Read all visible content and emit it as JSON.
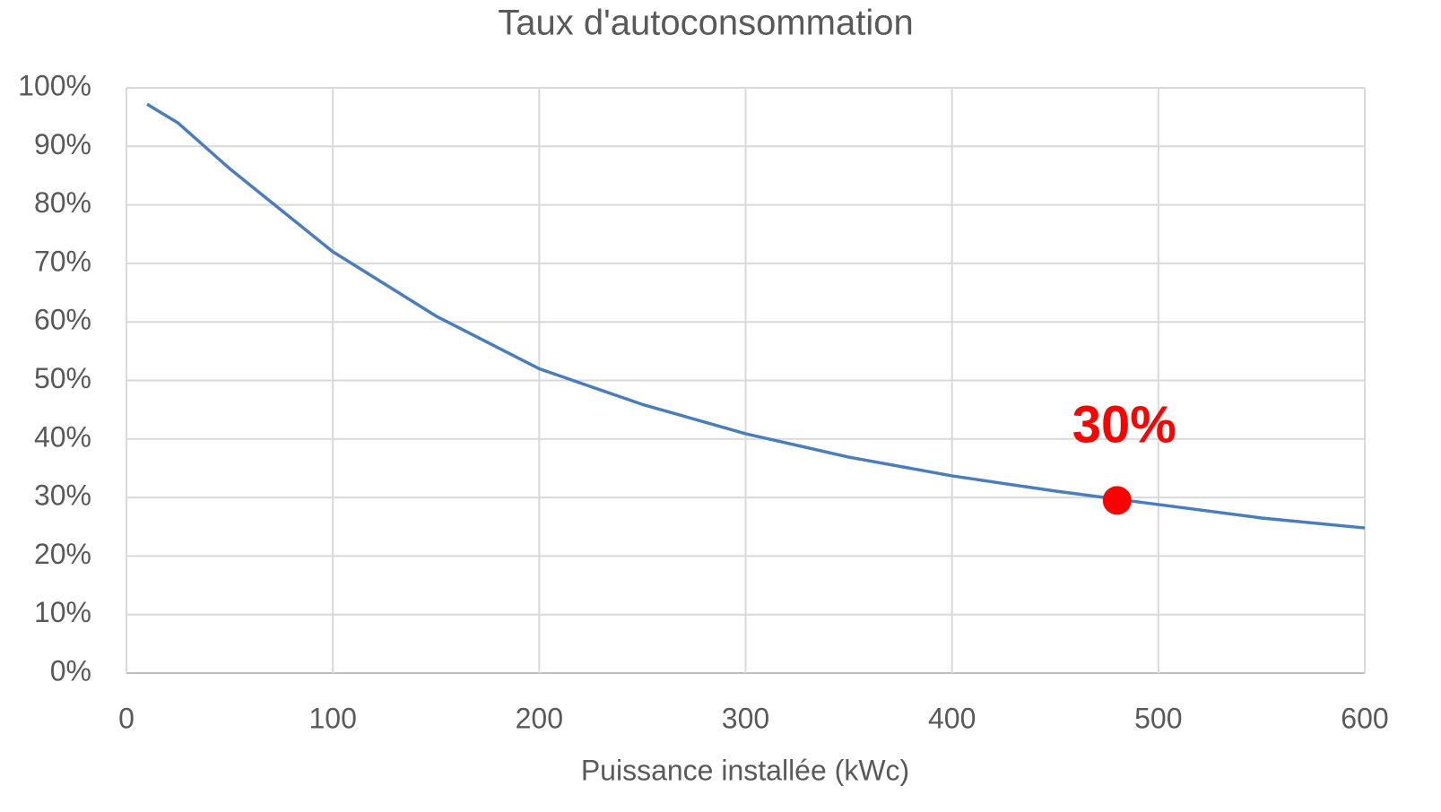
{
  "chart_data": {
    "type": "line",
    "title": "Taux d'autoconsommation",
    "x_label": "Puissance installée (kWc)",
    "series": [
      {
        "color": "#4a7ebb",
        "x": [
          10,
          25,
          50,
          100,
          150,
          200,
          250,
          300,
          350,
          400,
          450,
          500,
          550,
          600
        ],
        "values": [
          97.2,
          94,
          86.2,
          72,
          61,
          52,
          45.9,
          40.9,
          36.9,
          33.7,
          31.1,
          28.8,
          26.5,
          24.8
        ]
      }
    ],
    "highlight": {
      "x": 480,
      "values": [
        29.5
      ],
      "value_labels": [
        "30%"
      ],
      "color": "#ff0000"
    },
    "xlim": [
      0,
      600
    ],
    "xticks": [
      0,
      100,
      200,
      300,
      400,
      500,
      600
    ],
    "ylim": [
      0,
      100
    ],
    "yticks": [
      {
        "value": 0,
        "label": "0%"
      },
      {
        "value": 10,
        "label": "10%"
      },
      {
        "value": 20,
        "label": "20%"
      },
      {
        "value": 30,
        "label": "30%"
      },
      {
        "value": 40,
        "label": "40%"
      },
      {
        "value": 50,
        "label": "50%"
      },
      {
        "value": 60,
        "label": "60%"
      },
      {
        "value": 70,
        "label": "70%"
      },
      {
        "value": 80,
        "label": "80%"
      },
      {
        "value": 90,
        "label": "90%"
      },
      {
        "value": 100,
        "label": "100%"
      }
    ],
    "grid": true
  }
}
